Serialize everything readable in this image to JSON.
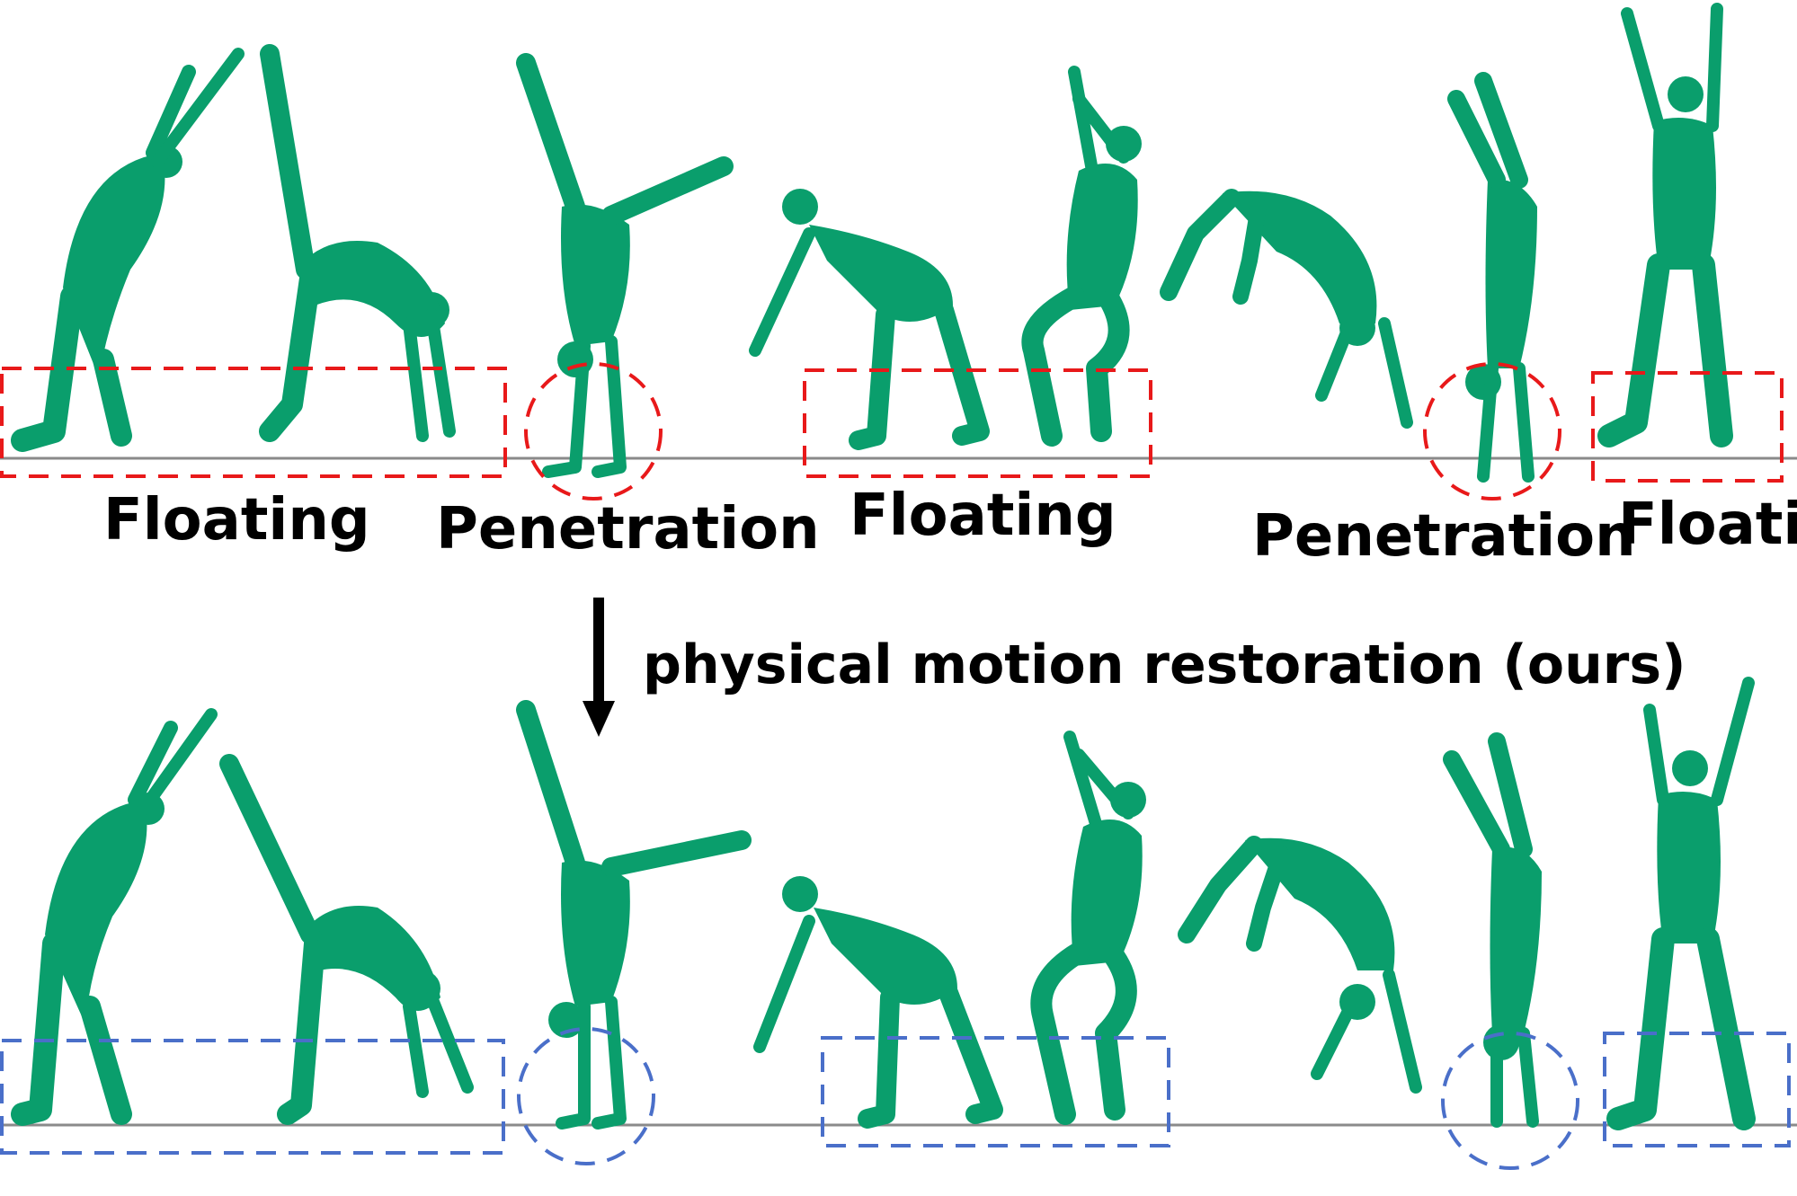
{
  "colors": {
    "body": "#0a9e6c",
    "body_shade": "#06855a",
    "ground": "#8a8a8a",
    "problem_marker": "#e8191a",
    "fixed_marker": "#4a6fc9",
    "text": "#000000"
  },
  "top_row": {
    "labels": {
      "floating_1": "Floating",
      "penetration_1": "Penetration",
      "floating_2": "Floating",
      "penetration_2": "Penetration",
      "floating_3": "Floatin"
    }
  },
  "arrow": {
    "label": "physical motion restoration (ours)",
    "icon": "down-arrow-icon"
  }
}
